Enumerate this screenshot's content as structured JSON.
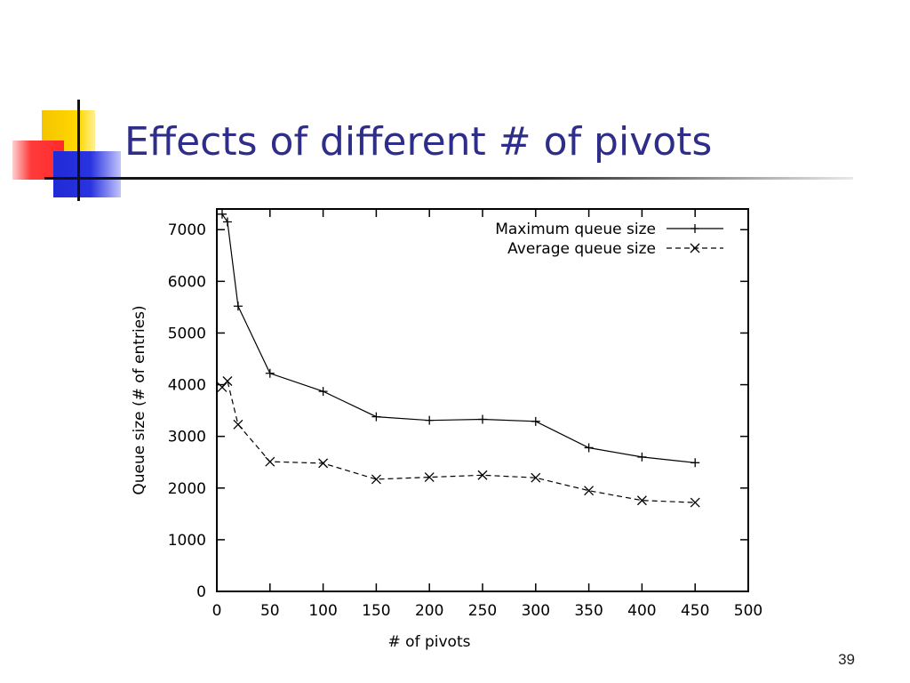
{
  "slide": {
    "title": "Effects of different # of pivots",
    "page_number": "39"
  },
  "chart_data": {
    "type": "line",
    "title": "",
    "xlabel": "# of pivots",
    "ylabel": "Queue size (# of entries)",
    "xlim": [
      0,
      500
    ],
    "ylim": [
      0,
      7400
    ],
    "x_ticks": [
      0,
      50,
      100,
      150,
      200,
      250,
      300,
      350,
      400,
      450,
      500
    ],
    "y_ticks": [
      0,
      1000,
      2000,
      3000,
      4000,
      5000,
      6000,
      7000
    ],
    "grid": false,
    "legend_position": "top-right",
    "series": [
      {
        "name": "Maximum queue size",
        "marker": "plus",
        "line_style": "solid",
        "color": "#000000",
        "x": [
          5,
          10,
          20,
          50,
          100,
          150,
          200,
          250,
          300,
          350,
          400,
          450
        ],
        "y": [
          7300,
          7150,
          5520,
          4220,
          3870,
          3380,
          3310,
          3330,
          3290,
          2780,
          2600,
          2490
        ]
      },
      {
        "name": "Average queue size",
        "marker": "cross",
        "line_style": "dashed",
        "color": "#000000",
        "x": [
          5,
          10,
          20,
          50,
          100,
          150,
          200,
          250,
          300,
          350,
          400,
          450
        ],
        "y": [
          3950,
          4070,
          3230,
          2510,
          2480,
          2170,
          2210,
          2250,
          2200,
          1950,
          1760,
          1720
        ]
      }
    ]
  }
}
